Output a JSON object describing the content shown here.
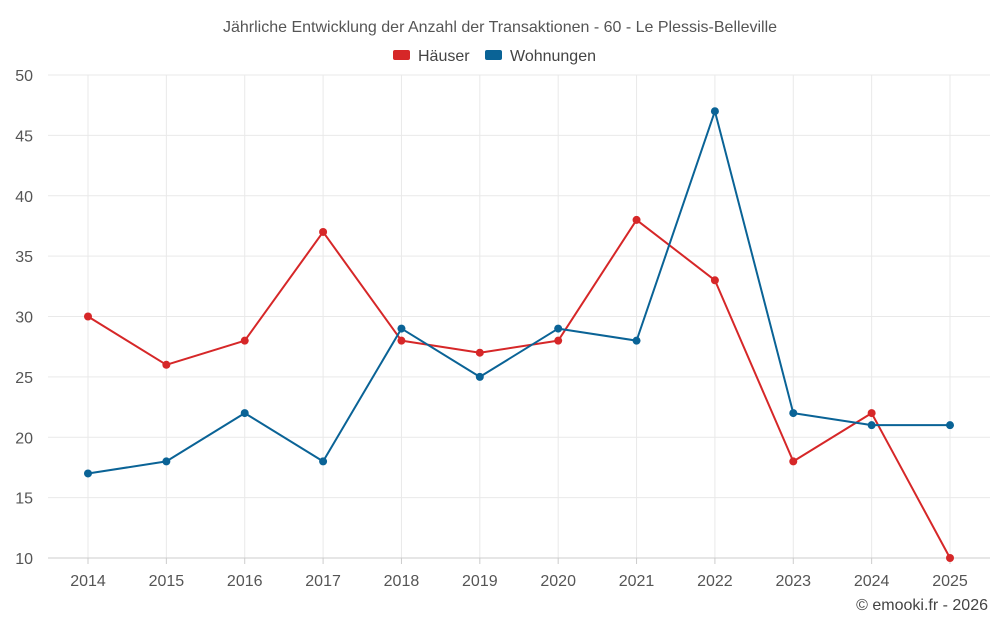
{
  "chart_data": {
    "type": "line",
    "title": "Jährliche Entwicklung der Anzahl der Transaktionen - 60 - Le Plessis-Belleville",
    "categories": [
      "2014",
      "2015",
      "2016",
      "2017",
      "2018",
      "2019",
      "2020",
      "2021",
      "2022",
      "2023",
      "2024",
      "2025"
    ],
    "series": [
      {
        "name": "Häuser",
        "color": "#d62728",
        "values": [
          30,
          26,
          28,
          37,
          28,
          27,
          28,
          38,
          33,
          18,
          22,
          10
        ]
      },
      {
        "name": "Wohnungen",
        "color": "#0a6396",
        "values": [
          17,
          18,
          22,
          18,
          29,
          25,
          29,
          28,
          47,
          22,
          21,
          21
        ]
      }
    ],
    "ylim": [
      10,
      50
    ],
    "yticks": [
      10,
      15,
      20,
      25,
      30,
      35,
      40,
      45,
      50
    ],
    "grid": true,
    "legend": "top-center",
    "xlabel": "",
    "ylabel": ""
  },
  "credit": "© emooki.fr - 2026"
}
